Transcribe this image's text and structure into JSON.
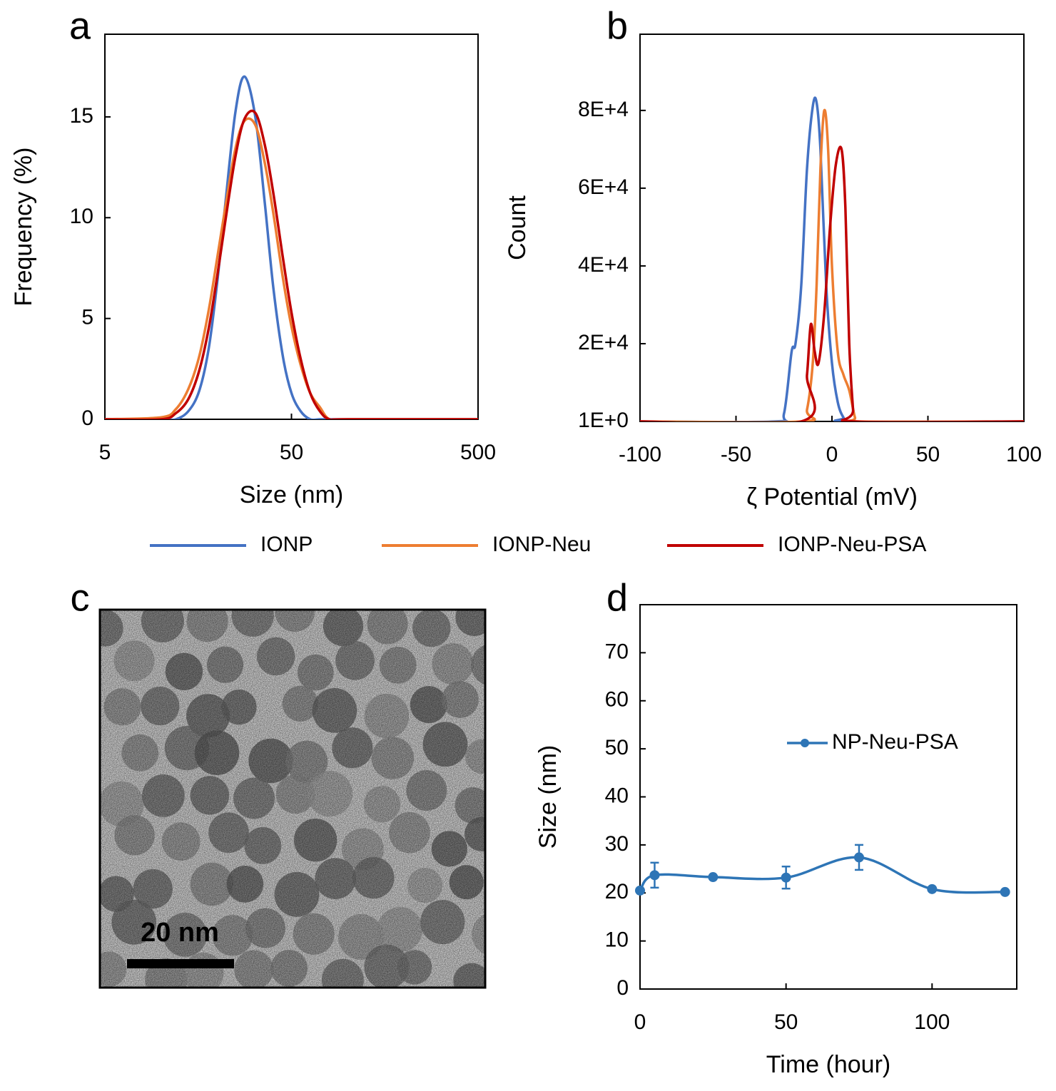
{
  "chart_data": [
    {
      "type": "line",
      "label": "a",
      "xlabel": "Size (nm)",
      "ylabel": "Frequency (%)",
      "xscale": "log",
      "xlim": [
        5,
        500
      ],
      "xticks": [
        5,
        50,
        500
      ],
      "ylim": [
        0,
        19.1
      ],
      "yticks": [
        0,
        5,
        10,
        15
      ],
      "x": [
        5,
        10,
        12,
        14,
        16,
        18,
        20,
        22,
        25,
        28,
        32,
        36,
        40,
        45,
        50,
        56,
        63,
        71,
        80,
        100,
        500
      ],
      "series": [
        {
          "name": "IONP",
          "color": "#4472c4",
          "values": [
            0,
            0,
            0,
            0.4,
            1.4,
            3.5,
            6.8,
            10.5,
            15.2,
            17.0,
            15.0,
            10.7,
            6.5,
            3.1,
            1.3,
            0.4,
            0,
            0,
            0,
            0,
            0
          ]
        },
        {
          "name": "IONP-Neu",
          "color": "#ed7d31",
          "values": [
            0,
            0.1,
            0.5,
            1.5,
            3.1,
            5.4,
            8.0,
            10.4,
            13.4,
            14.8,
            14.6,
            12.7,
            10.2,
            7.0,
            4.6,
            2.7,
            1.3,
            0.6,
            0,
            0,
            0
          ]
        },
        {
          "name": "IONP-Neu-PSA",
          "color": "#c00000",
          "values": [
            0,
            0,
            0.3,
            1.0,
            2.4,
            4.5,
            7.1,
            9.7,
            13.0,
            14.9,
            15.2,
            13.6,
            11.2,
            8.0,
            5.3,
            3.0,
            1.3,
            0.4,
            0,
            0,
            0
          ]
        }
      ]
    },
    {
      "type": "line",
      "label": "b",
      "xlabel": "ζ Potential (mV)",
      "ylabel": "Count",
      "xlim": [
        -100,
        100
      ],
      "xticks": [
        -100,
        -50,
        0,
        50,
        100
      ],
      "ylim": [
        1,
        99600
      ],
      "yticks": [
        {
          "value": 1,
          "label": "1E+0"
        },
        {
          "value": 20000,
          "label": "2E+4"
        },
        {
          "value": 40000,
          "label": "4E+4"
        },
        {
          "value": 60000,
          "label": "6E+4"
        },
        {
          "value": 80000,
          "label": "8E+4"
        }
      ],
      "series": [
        {
          "color": "#4472c4",
          "x": [
            -100,
            -30,
            -25,
            -21,
            -19,
            -16,
            -13,
            -10,
            -8,
            -6,
            -3,
            0,
            3,
            6,
            9,
            100
          ],
          "values": [
            0,
            0,
            2000,
            18000,
            20000,
            35000,
            65000,
            81000,
            82000,
            70000,
            35000,
            15000,
            5000,
            1000,
            0,
            0
          ]
        },
        {
          "color": "#ed7d31",
          "x": [
            -100,
            -16,
            -13,
            -10,
            -8,
            -6,
            -4,
            -2,
            0,
            3,
            6,
            9,
            12,
            14,
            100
          ],
          "values": [
            0,
            0,
            3000,
            15000,
            35000,
            65000,
            80000,
            70000,
            40000,
            18000,
            12000,
            8000,
            1000,
            0,
            0
          ]
        },
        {
          "color": "#c00000",
          "x": [
            -100,
            -16,
            -13,
            -11,
            -9,
            -7,
            -4,
            -1,
            2,
            5,
            7,
            9,
            11,
            12,
            100
          ],
          "values": [
            0,
            0,
            12000,
            25000,
            18000,
            15000,
            28000,
            50000,
            66000,
            70000,
            55000,
            20000,
            3000,
            0,
            0
          ]
        }
      ]
    },
    {
      "type": "line",
      "label": "d",
      "xlabel": "Time (hour)",
      "ylabel": "Size (nm)",
      "xlim": [
        0,
        129
      ],
      "xticks": [
        0,
        50,
        100
      ],
      "ylim": [
        0,
        80
      ],
      "yticks": [
        0,
        10,
        20,
        30,
        40,
        50,
        60,
        70
      ],
      "x": [
        0,
        5,
        25,
        50,
        75,
        100,
        125
      ],
      "series": [
        {
          "name": "NP-Neu-PSA",
          "color": "#2e75b6",
          "values": [
            20.5,
            23.7,
            23.3,
            23.2,
            27.4,
            20.8,
            20.2
          ],
          "errors": [
            0,
            2.6,
            0,
            2.3,
            2.6,
            0,
            0
          ]
        }
      ]
    }
  ],
  "image": {
    "label": "c",
    "scale_bar": "20 nm"
  }
}
